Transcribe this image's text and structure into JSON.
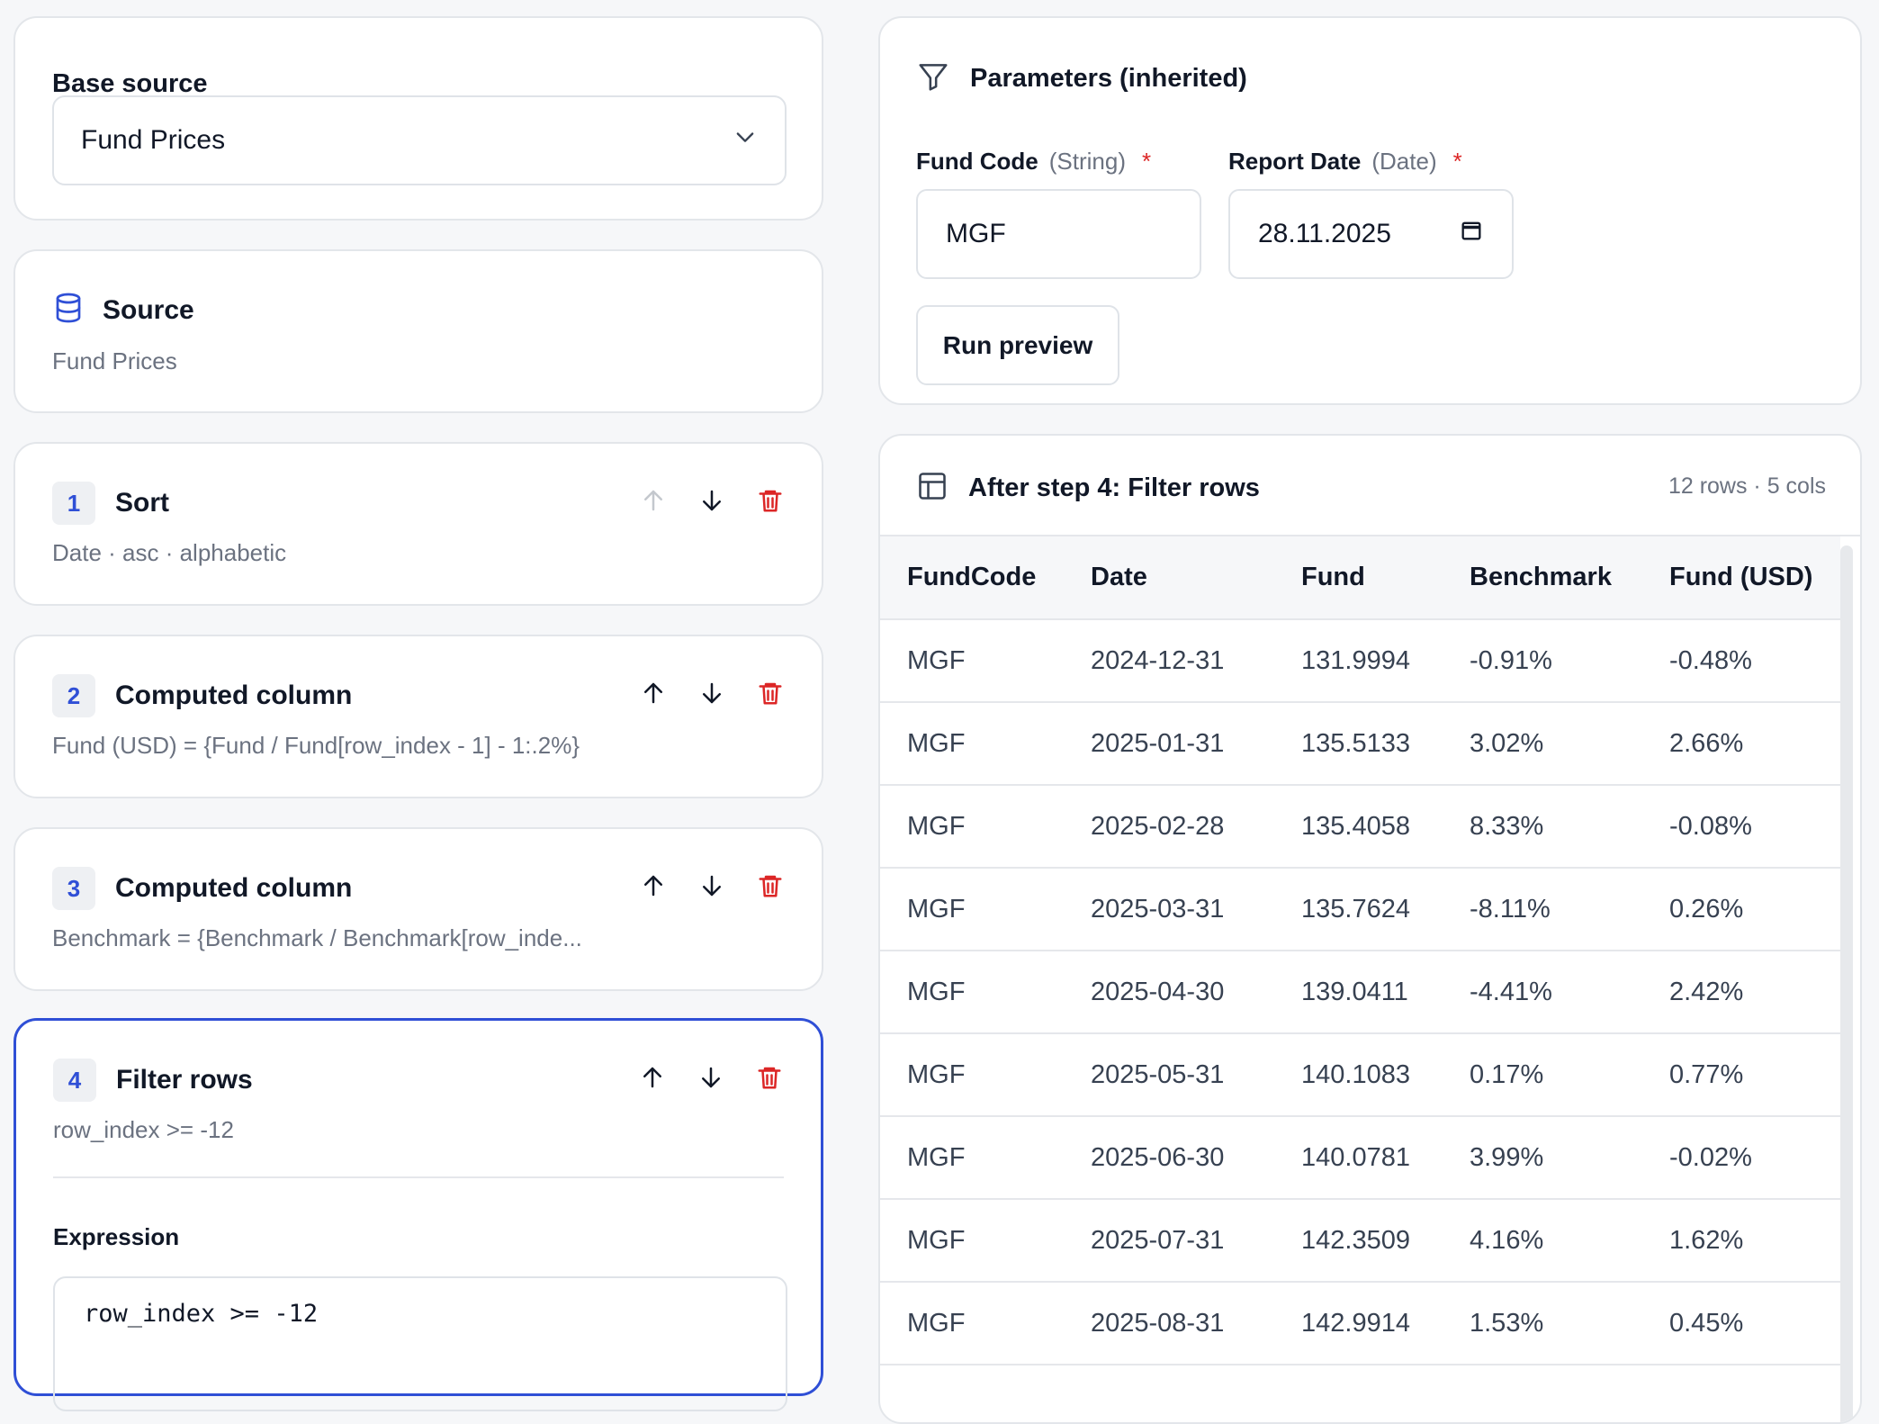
{
  "base_source": {
    "label": "Base source",
    "selected": "Fund Prices",
    "icon": "chevron-down-icon"
  },
  "source": {
    "title": "Source",
    "subtitle": "Fund Prices",
    "icon": "database-icon"
  },
  "steps": [
    {
      "num": "1",
      "title": "Sort",
      "detail": "Date · asc · alphabetic"
    },
    {
      "num": "2",
      "title": "Computed column",
      "detail": "Fund (USD) = {Fund / Fund[row_index - 1] - 1:.2%}"
    },
    {
      "num": "3",
      "title": "Computed column",
      "detail": "Benchmark = {Benchmark / Benchmark[row_inde..."
    },
    {
      "num": "4",
      "title": "Filter rows",
      "detail": "row_index >= -12",
      "expression_label": "Expression",
      "expression": "row_index >= -12"
    }
  ],
  "params": {
    "title": "Parameters (inherited)",
    "fields": [
      {
        "name": "Fund Code",
        "type": "(String)",
        "required": "*",
        "value": "MGF"
      },
      {
        "name": "Report Date",
        "type": "(Date)",
        "required": "*",
        "value": "28.11.2025"
      }
    ],
    "run_label": "Run preview"
  },
  "preview": {
    "title": "After step 4: Filter rows",
    "meta": "12 rows · 5 cols",
    "columns": [
      "FundCode",
      "Date",
      "Fund",
      "Benchmark",
      "Fund (USD)"
    ],
    "rows": [
      [
        "MGF",
        "2024-12-31",
        "131.9994",
        "-0.91%",
        "-0.48%"
      ],
      [
        "MGF",
        "2025-01-31",
        "135.5133",
        "3.02%",
        "2.66%"
      ],
      [
        "MGF",
        "2025-02-28",
        "135.4058",
        "8.33%",
        "-0.08%"
      ],
      [
        "MGF",
        "2025-03-31",
        "135.7624",
        "-8.11%",
        "0.26%"
      ],
      [
        "MGF",
        "2025-04-30",
        "139.0411",
        "-4.41%",
        "2.42%"
      ],
      [
        "MGF",
        "2025-05-31",
        "140.1083",
        "0.17%",
        "0.77%"
      ],
      [
        "MGF",
        "2025-06-30",
        "140.0781",
        "3.99%",
        "-0.02%"
      ],
      [
        "MGF",
        "2025-07-31",
        "142.3509",
        "4.16%",
        "1.62%"
      ],
      [
        "MGF",
        "2025-08-31",
        "142.9914",
        "1.53%",
        "0.45%"
      ]
    ]
  },
  "colors": {
    "accent": "#2f4fd6",
    "danger": "#dc2626",
    "muted": "#6b7280"
  }
}
